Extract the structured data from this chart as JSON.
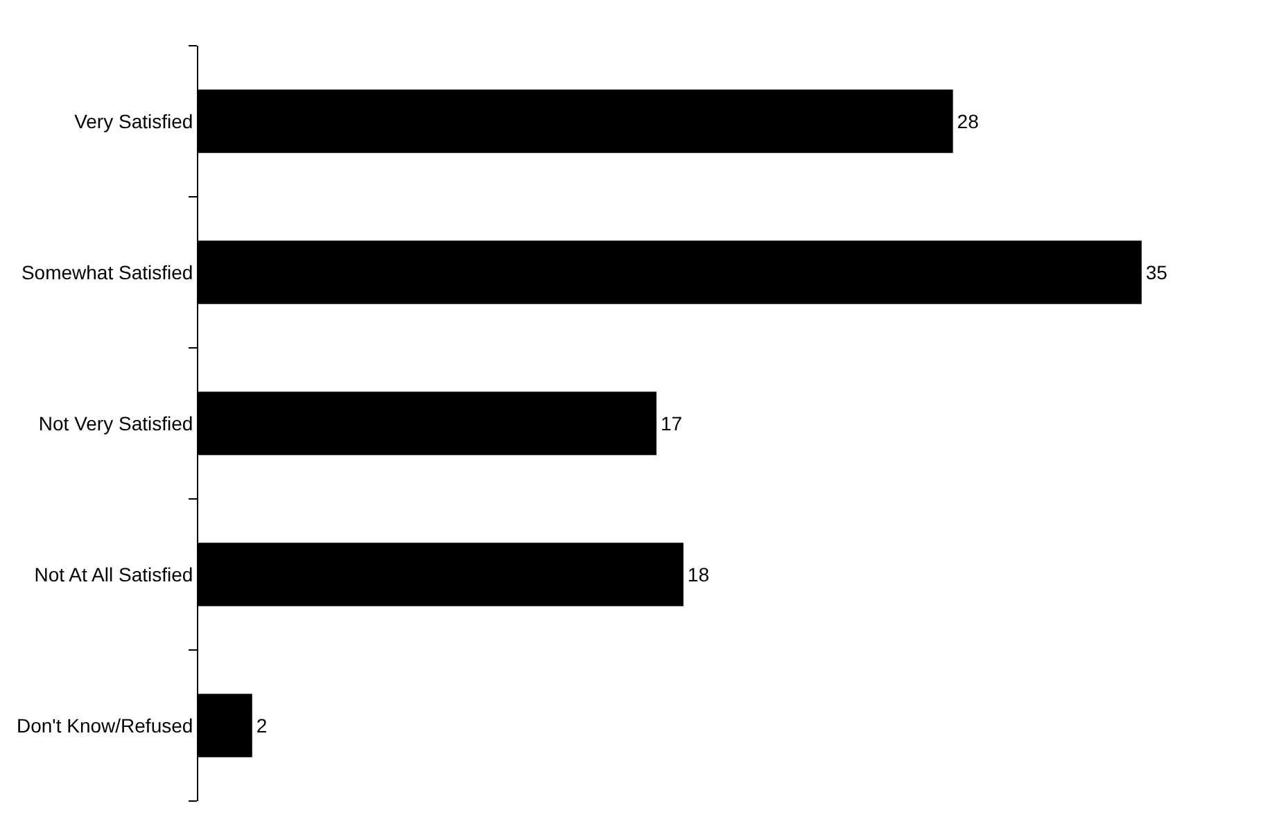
{
  "chart_data": {
    "type": "bar",
    "orientation": "horizontal",
    "categories": [
      "Very Satisfied",
      "Somewhat Satisfied",
      "Not Very Satisfied",
      "Not At All Satisfied",
      "Don't Know/Refused"
    ],
    "values": [
      28,
      35,
      17,
      18,
      2
    ],
    "color": "#000000",
    "data_labels": true
  }
}
